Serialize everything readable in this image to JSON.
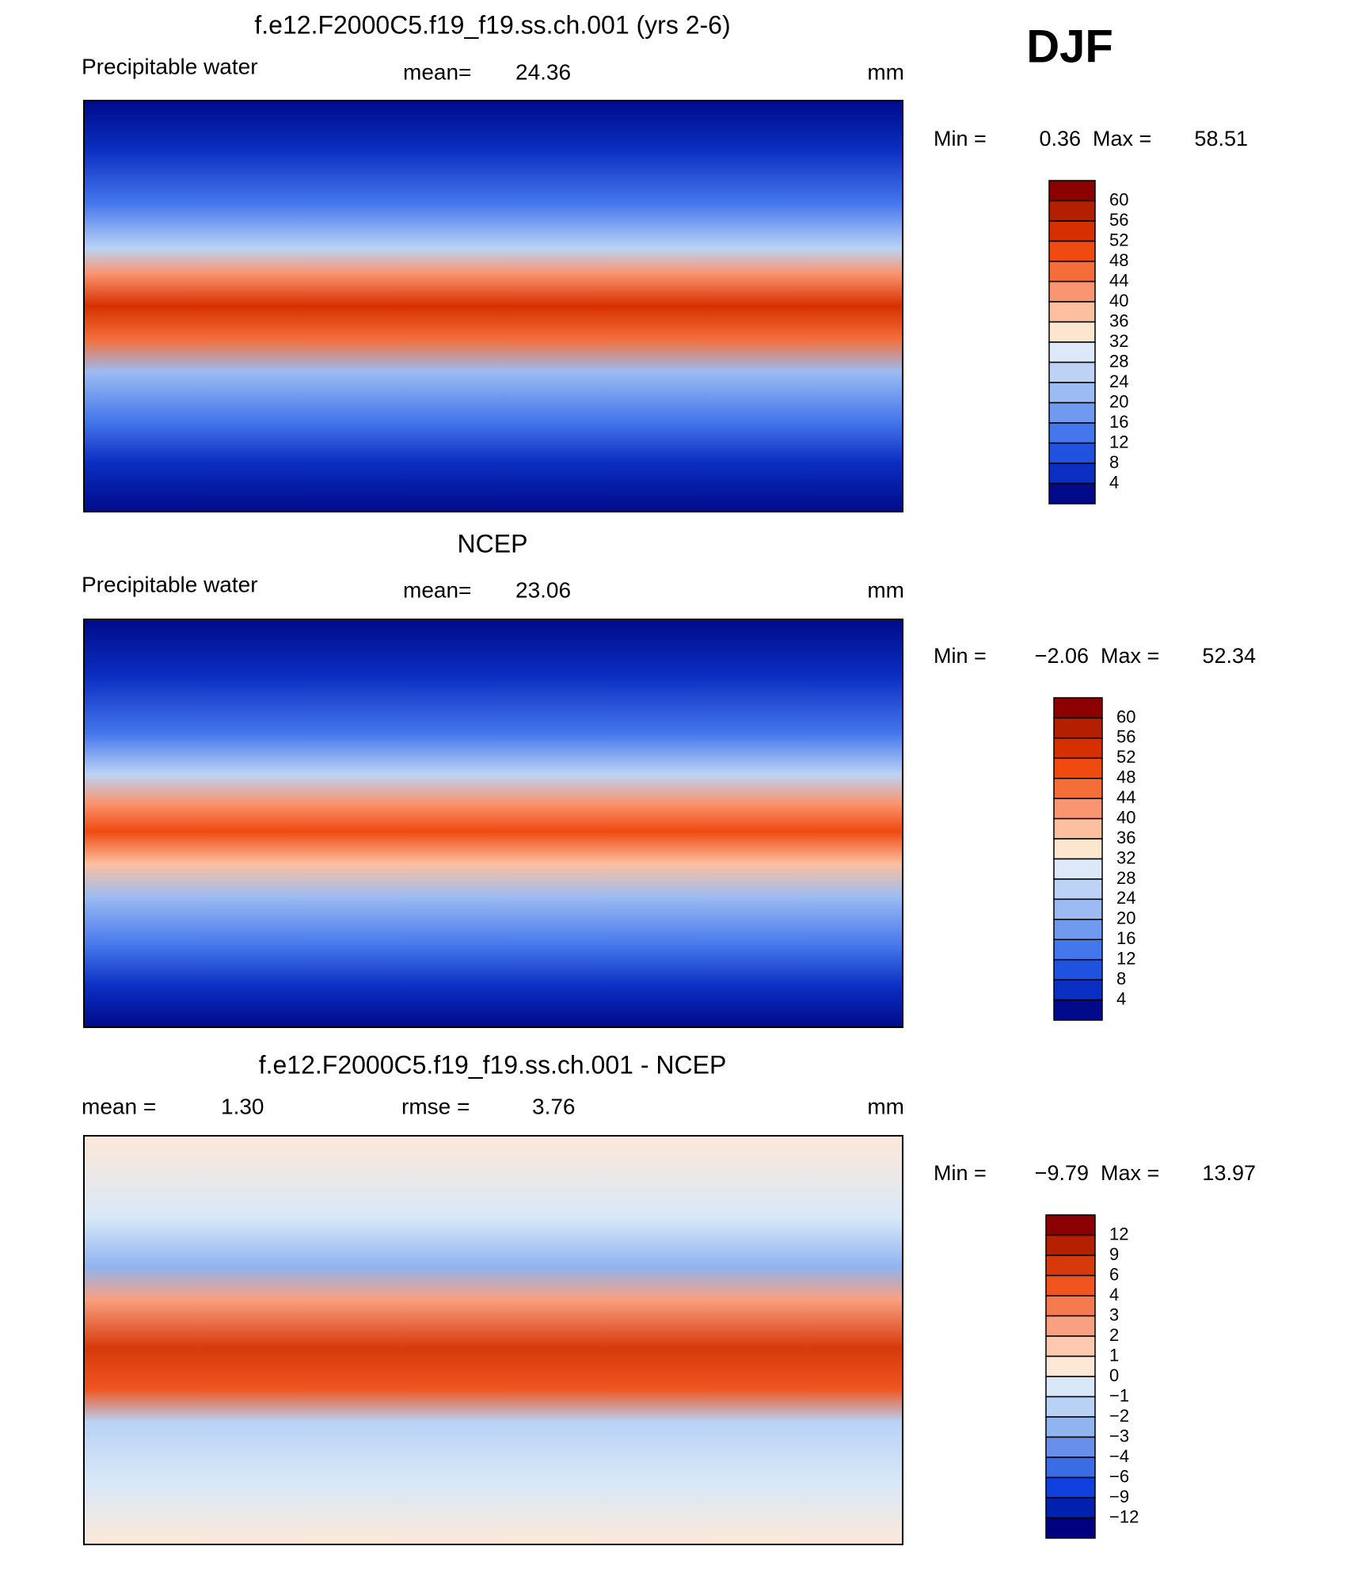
{
  "figure_label": "DJF",
  "panels": [
    {
      "title": "f.e12.F2000C5.f19_f19.ss.ch.001 (yrs 2-6)",
      "left_label": "Precipitable  water",
      "mean_label": "mean=",
      "mean": "24.36",
      "unit": "mm",
      "min_label": "Min =",
      "min": "0.36",
      "max_label": "Max =",
      "max": "58.51",
      "colorbar": [
        "60",
        "56",
        "52",
        "48",
        "44",
        "40",
        "36",
        "32",
        "28",
        "24",
        "20",
        "16",
        "12",
        "8",
        "4"
      ]
    },
    {
      "title": "NCEP",
      "left_label": "Precipitable  water",
      "mean_label": "mean=",
      "mean": "23.06",
      "unit": "mm",
      "min_label": "Min =",
      "min": "−2.06",
      "max_label": "Max =",
      "max": "52.34",
      "colorbar": [
        "60",
        "56",
        "52",
        "48",
        "44",
        "40",
        "36",
        "32",
        "28",
        "24",
        "20",
        "16",
        "12",
        "8",
        "4"
      ]
    },
    {
      "title": "f.e12.F2000C5.f19_f19.ss.ch.001 - NCEP",
      "mean_label": "mean =",
      "mean": "1.30",
      "rmse_label": "rmse =",
      "rmse": "3.76",
      "unit": "mm",
      "min_label": "Min =",
      "min": "−9.79",
      "max_label": "Max =",
      "max": "13.97",
      "colorbar": [
        "12",
        "9",
        "6",
        "4",
        "3",
        "2",
        "1",
        "0",
        "−1",
        "−2",
        "−3",
        "−4",
        "−6",
        "−9",
        "−12"
      ]
    }
  ]
}
